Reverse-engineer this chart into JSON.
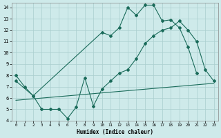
{
  "xlabel": "Humidex (Indice chaleur)",
  "bg_color": "#ceeaea",
  "grid_color": "#aacece",
  "line_color": "#1a6b5a",
  "xlim": [
    -0.5,
    23.5
  ],
  "ylim": [
    4,
    14.4
  ],
  "xticks": [
    0,
    1,
    2,
    3,
    4,
    5,
    6,
    7,
    8,
    9,
    10,
    11,
    12,
    13,
    14,
    15,
    16,
    17,
    18,
    19,
    20,
    21,
    22,
    23
  ],
  "yticks": [
    4,
    5,
    6,
    7,
    8,
    9,
    10,
    11,
    12,
    13,
    14
  ],
  "line1_x": [
    0,
    1,
    2,
    10,
    11,
    12,
    13,
    14,
    15,
    16,
    17,
    18,
    19,
    20,
    21
  ],
  "line1_y": [
    8.0,
    7.0,
    6.2,
    11.8,
    11.5,
    12.2,
    14.0,
    13.3,
    14.2,
    14.2,
    12.8,
    12.9,
    12.2,
    10.5,
    8.2
  ],
  "line2_x": [
    0,
    2,
    3,
    4,
    5,
    6,
    7,
    8,
    9,
    10,
    11,
    12,
    13,
    14,
    15,
    16,
    17,
    18,
    19,
    20,
    21,
    22,
    23
  ],
  "line2_y": [
    7.5,
    6.2,
    5.0,
    5.0,
    5.0,
    4.2,
    5.2,
    7.8,
    5.3,
    6.8,
    7.5,
    8.2,
    8.5,
    9.5,
    10.8,
    11.5,
    12.0,
    12.2,
    12.8,
    12.0,
    11.0,
    8.5,
    7.5
  ],
  "line3_x": [
    0,
    23
  ],
  "line3_y": [
    5.8,
    7.3
  ]
}
